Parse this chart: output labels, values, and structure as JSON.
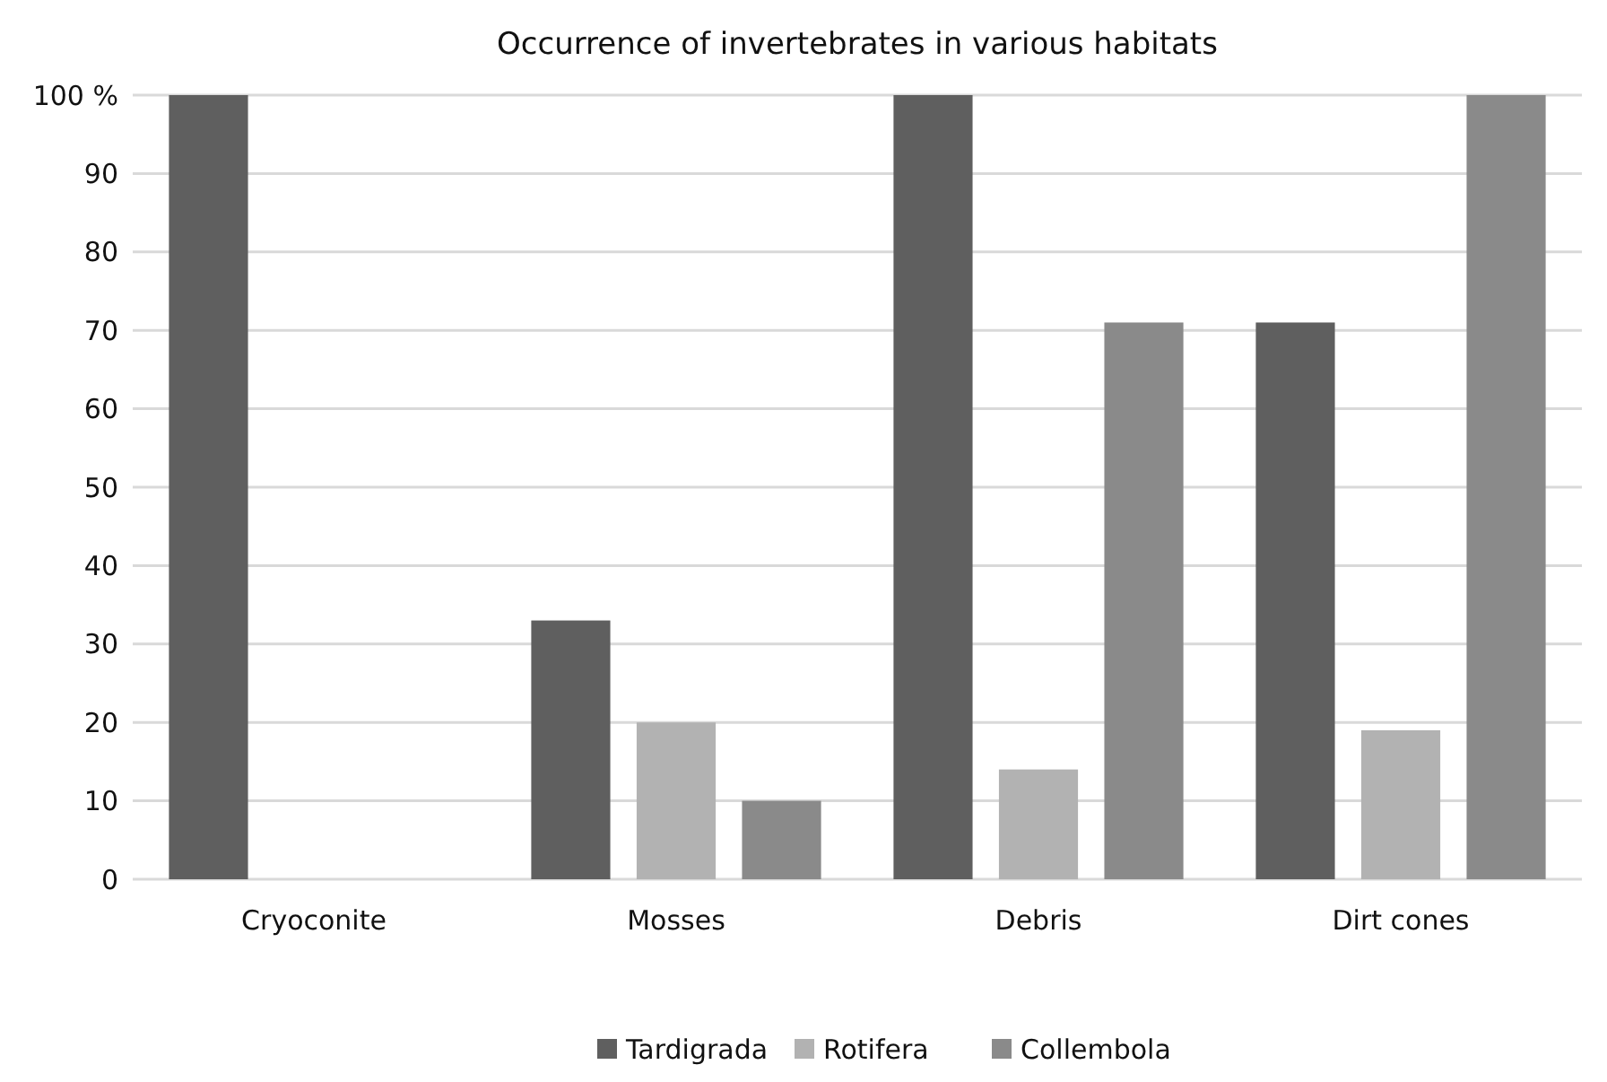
{
  "chart_data": {
    "type": "bar",
    "title": "Occurrence of invertebrates in various habitats",
    "categories": [
      "Cryoconite",
      "Mosses",
      "Debris",
      "Dirt cones"
    ],
    "series": [
      {
        "name": "Tardigrada",
        "color": "#5f5f5f",
        "values": [
          100,
          33,
          100,
          71
        ]
      },
      {
        "name": "Rotifera",
        "color": "#b2b2b2",
        "values": [
          0,
          20,
          14,
          19
        ]
      },
      {
        "name": "Collembola",
        "color": "#8a8a8a",
        "values": [
          0,
          10,
          71,
          100
        ]
      }
    ],
    "ylim": [
      0,
      100
    ],
    "yticks": [
      0,
      10,
      20,
      30,
      40,
      50,
      60,
      70,
      80,
      90,
      {
        "value": 100,
        "label": "100 %"
      }
    ],
    "grid": "y",
    "legend": "bottom"
  }
}
